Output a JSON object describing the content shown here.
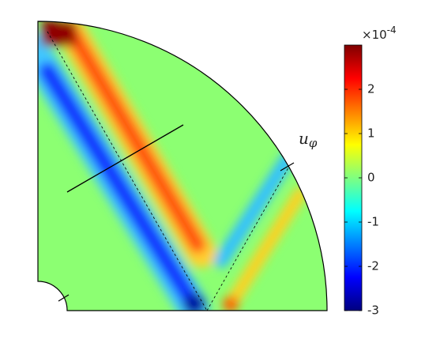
{
  "chart_data": {
    "type": "colormap",
    "clim": [
      -3,
      3
    ],
    "cticks": [
      -3,
      -2,
      -1,
      0,
      1,
      2
    ],
    "scale_label_base": "×10",
    "scale_label_exponent": "-4",
    "annotation": {
      "base": "u",
      "subscript": "φ"
    }
  }
}
